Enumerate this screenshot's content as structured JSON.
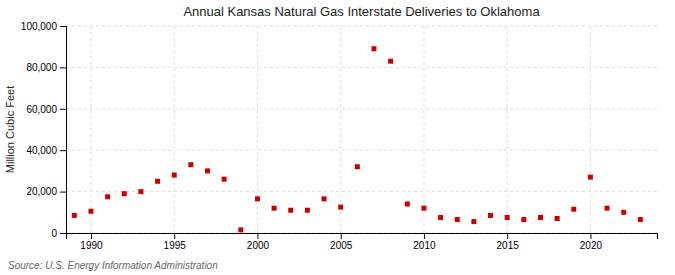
{
  "chart_data": {
    "type": "scatter",
    "title": "Annual Kansas Natural Gas Interstate Deliveries to Oklahoma",
    "ylabel": "Million Cubic Feet",
    "annotations": [
      "Source: U.S. Energy Information Administration"
    ],
    "x": [
      1989,
      1990,
      1991,
      1992,
      1993,
      1994,
      1995,
      1996,
      1997,
      1998,
      1999,
      2000,
      2001,
      2002,
      2003,
      2004,
      2005,
      2006,
      2007,
      2008,
      2009,
      2010,
      2011,
      2012,
      2013,
      2014,
      2015,
      2016,
      2017,
      2018,
      2019,
      2020,
      2021,
      2022,
      2023
    ],
    "values": [
      8500,
      10500,
      17500,
      19000,
      20000,
      25000,
      28000,
      33000,
      30000,
      26000,
      1500,
      16500,
      12000,
      11000,
      11000,
      16500,
      12500,
      32000,
      89000,
      83000,
      14000,
      12000,
      7500,
      6500,
      5500,
      8500,
      7500,
      6500,
      7500,
      7000,
      11500,
      27000,
      12000,
      10000,
      6500
    ],
    "color": "#cc0000",
    "marker": "square",
    "grid": true,
    "xlim": [
      1988.5,
      2024
    ],
    "xticks": [
      1990,
      1995,
      2000,
      2005,
      2010,
      2015,
      2020
    ],
    "ylim": [
      0,
      100000
    ],
    "yticks": [
      0,
      {
        "value": 20000,
        "label": "20,000"
      },
      {
        "value": 40000,
        "label": "40,000"
      },
      {
        "value": 60000,
        "label": "60,000"
      },
      {
        "value": 80000,
        "label": "80,000"
      },
      {
        "value": 100000,
        "label": "100,000"
      }
    ]
  }
}
